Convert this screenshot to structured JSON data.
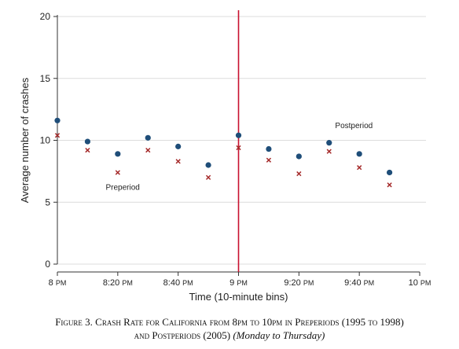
{
  "chart_data": {
    "type": "scatter",
    "ylabel": "Average number of crashes",
    "xlabel": "Time (10-minute bins)",
    "ylim": [
      0,
      20
    ],
    "yticks": [
      0,
      5,
      10,
      15,
      20
    ],
    "xlim": [
      0,
      12
    ],
    "xticks": [
      {
        "x": 0,
        "label": "8 PM"
      },
      {
        "x": 2,
        "label": "8:20 PM"
      },
      {
        "x": 4,
        "label": "8:40 PM"
      },
      {
        "x": 6,
        "label": "9 PM"
      },
      {
        "x": 8,
        "label": "9:20 PM"
      },
      {
        "x": 10,
        "label": "9:40 PM"
      },
      {
        "x": 12,
        "label": "10 PM"
      }
    ],
    "grid": "horizontal",
    "vertical_line": {
      "x": 6,
      "color": "#c8102e"
    },
    "series": [
      {
        "name": "Postperiod",
        "marker": "circle",
        "color": "#1f4e79",
        "x": [
          0,
          1,
          2,
          3,
          4,
          5,
          6,
          7,
          8,
          9,
          10,
          11
        ],
        "values": [
          11.6,
          9.9,
          8.9,
          10.2,
          9.5,
          8.0,
          10.4,
          9.3,
          8.7,
          9.8,
          8.9,
          7.4
        ]
      },
      {
        "name": "Preperiod",
        "marker": "x",
        "color": "#a52a2a",
        "x": [
          0,
          1,
          2,
          3,
          4,
          5,
          6,
          7,
          8,
          9,
          10,
          11
        ],
        "values": [
          10.4,
          9.2,
          7.4,
          9.2,
          8.3,
          7.0,
          9.4,
          8.4,
          7.3,
          9.1,
          7.8,
          6.4
        ]
      }
    ],
    "annotations": [
      {
        "text": "Postperiod",
        "x": 9.2,
        "y": 11.0
      },
      {
        "text": "Preperiod",
        "x": 1.6,
        "y": 6.0
      }
    ]
  },
  "caption": {
    "line1_prefix": "Figure 3. Crash Rate for California from 8pm to 10pm in Preperiods (1995 to 1998)",
    "line2_main": "and Postperiods (2005) ",
    "line2_italic": "(Monday to Thursday)"
  }
}
